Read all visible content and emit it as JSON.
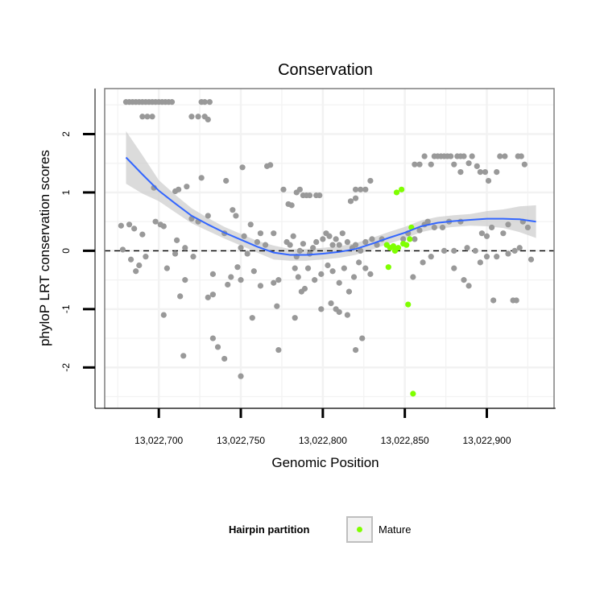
{
  "chart_data": {
    "type": "scatter",
    "title": "Conservation",
    "xlabel": "Genomic Position",
    "ylabel": "phyloP LRT conservation scores",
    "xlim": [
      13022667,
      13022941
    ],
    "ylim": [
      -2.7,
      2.78
    ],
    "x_ticks": [
      13022700,
      13022750,
      13022800,
      13022850,
      13022900
    ],
    "x_tick_labels": [
      "13,022,700",
      "13,022,750",
      "13,022,800",
      "13,022,850",
      "13,022,900"
    ],
    "y_ticks": [
      -2,
      -1,
      0,
      1,
      2
    ],
    "y_tick_labels": [
      "-2",
      "-1",
      "0",
      "1",
      "2"
    ],
    "grid": true,
    "reference_line": {
      "y": 0,
      "style": "dashed"
    },
    "legend": {
      "title": "Hairpin partition",
      "position": "bottom",
      "entries": [
        {
          "label": "Mature",
          "color": "#7fff00"
        }
      ]
    },
    "colors": {
      "points": "#999999",
      "mature": "#7fff00",
      "smooth": "#3366ff",
      "band": "#cfcfcf",
      "panel_grid": "#f2f2f2",
      "panel_border": "#7f7f7f"
    },
    "smooth_fit": {
      "x": [
        13022680,
        13022690,
        13022700,
        13022710,
        13022720,
        13022730,
        13022740,
        13022750,
        13022760,
        13022770,
        13022780,
        13022790,
        13022800,
        13022810,
        13022820,
        13022830,
        13022840,
        13022850,
        13022860,
        13022870,
        13022880,
        13022890,
        13022900,
        13022910,
        13022920,
        13022930
      ],
      "y": [
        1.6,
        1.31,
        1.03,
        0.81,
        0.6,
        0.45,
        0.31,
        0.19,
        0.07,
        -0.03,
        -0.07,
        -0.07,
        -0.05,
        -0.02,
        0.03,
        0.12,
        0.22,
        0.31,
        0.42,
        0.48,
        0.51,
        0.53,
        0.55,
        0.55,
        0.54,
        0.5
      ],
      "lower": [
        1.15,
        0.98,
        0.85,
        0.66,
        0.47,
        0.34,
        0.21,
        0.09,
        -0.03,
        -0.15,
        -0.17,
        -0.17,
        -0.15,
        -0.12,
        -0.07,
        0.02,
        0.12,
        0.21,
        0.32,
        0.38,
        0.41,
        0.43,
        0.42,
        0.39,
        0.32,
        0.22
      ],
      "upper": [
        2.05,
        1.64,
        1.21,
        0.96,
        0.73,
        0.56,
        0.41,
        0.29,
        0.17,
        0.09,
        0.03,
        0.03,
        0.05,
        0.08,
        0.13,
        0.22,
        0.32,
        0.41,
        0.52,
        0.58,
        0.61,
        0.63,
        0.68,
        0.71,
        0.76,
        0.78
      ]
    },
    "series": [
      {
        "points": [
          [
            13022680,
            2.55
          ],
          [
            13022682,
            2.55
          ],
          [
            13022684,
            2.55
          ],
          [
            13022686,
            2.55
          ],
          [
            13022688,
            2.55
          ],
          [
            13022690,
            2.55
          ],
          [
            13022692,
            2.55
          ],
          [
            13022694,
            2.55
          ],
          [
            13022696,
            2.55
          ],
          [
            13022698,
            2.55
          ],
          [
            13022700,
            2.55
          ],
          [
            13022702,
            2.55
          ],
          [
            13022704,
            2.55
          ],
          [
            13022706,
            2.55
          ],
          [
            13022708,
            2.55
          ],
          [
            13022690,
            2.3
          ],
          [
            13022693,
            2.3
          ],
          [
            13022696,
            2.3
          ],
          [
            13022726,
            2.55
          ],
          [
            13022728,
            2.55
          ],
          [
            13022731,
            2.55
          ],
          [
            13022720,
            2.3
          ],
          [
            13022724,
            2.3
          ],
          [
            13022728,
            2.3
          ],
          [
            13022730,
            2.25
          ],
          [
            13022697,
            1.08
          ],
          [
            13022710,
            1.02
          ],
          [
            13022712,
            1.05
          ],
          [
            13022717,
            1.1
          ],
          [
            13022726,
            1.25
          ],
          [
            13022741,
            1.2
          ],
          [
            13022751,
            1.43
          ],
          [
            13022766,
            1.45
          ],
          [
            13022768,
            1.47
          ],
          [
            13022677,
            0.43
          ],
          [
            13022682,
            0.45
          ],
          [
            13022685,
            0.38
          ],
          [
            13022690,
            0.28
          ],
          [
            13022698,
            0.5
          ],
          [
            13022701,
            0.45
          ],
          [
            13022703,
            0.42
          ],
          [
            13022711,
            0.18
          ],
          [
            13022716,
            0.05
          ],
          [
            13022720,
            0.55
          ],
          [
            13022724,
            0.5
          ],
          [
            13022730,
            0.6
          ],
          [
            13022740,
            0.3
          ],
          [
            13022745,
            0.7
          ],
          [
            13022747,
            0.6
          ],
          [
            13022750,
            0.05
          ],
          [
            13022752,
            0.25
          ],
          [
            13022756,
            0.45
          ],
          [
            13022760,
            0.15
          ],
          [
            13022762,
            0.3
          ],
          [
            13022765,
            0.1
          ],
          [
            13022770,
            0.3
          ],
          [
            13022678,
            0.02
          ],
          [
            13022683,
            -0.15
          ],
          [
            13022686,
            -0.35
          ],
          [
            13022688,
            -0.25
          ],
          [
            13022692,
            -0.1
          ],
          [
            13022705,
            -0.3
          ],
          [
            13022710,
            -0.05
          ],
          [
            13022716,
            -0.5
          ],
          [
            13022721,
            -0.1
          ],
          [
            13022733,
            -0.4
          ],
          [
            13022744,
            -0.45
          ],
          [
            13022750,
            -0.5
          ],
          [
            13022754,
            -0.05
          ],
          [
            13022758,
            -0.35
          ],
          [
            13022762,
            -0.6
          ],
          [
            13022770,
            -0.55
          ],
          [
            13022773,
            -0.5
          ],
          [
            13022703,
            -1.1
          ],
          [
            13022713,
            -0.78
          ],
          [
            13022730,
            -0.8
          ],
          [
            13022733,
            -0.75
          ],
          [
            13022742,
            -0.58
          ],
          [
            13022748,
            -0.28
          ],
          [
            13022757,
            -1.15
          ],
          [
            13022772,
            -0.95
          ],
          [
            13022715,
            -1.8
          ],
          [
            13022733,
            -1.5
          ],
          [
            13022736,
            -1.65
          ],
          [
            13022740,
            -1.85
          ],
          [
            13022750,
            -2.15
          ],
          [
            13022773,
            -1.7
          ],
          [
            13022776,
            1.05
          ],
          [
            13022779,
            0.8
          ],
          [
            13022781,
            0.78
          ],
          [
            13022784,
            1.0
          ],
          [
            13022786,
            1.05
          ],
          [
            13022788,
            0.95
          ],
          [
            13022790,
            0.95
          ],
          [
            13022792,
            0.95
          ],
          [
            13022796,
            0.95
          ],
          [
            13022798,
            0.95
          ],
          [
            13022778,
            0.15
          ],
          [
            13022780,
            0.1
          ],
          [
            13022782,
            0.25
          ],
          [
            13022784,
            -0.1
          ],
          [
            13022786,
            0.0
          ],
          [
            13022788,
            0.12
          ],
          [
            13022792,
            -0.05
          ],
          [
            13022794,
            0.05
          ],
          [
            13022796,
            0.15
          ],
          [
            13022800,
            0.2
          ],
          [
            13022802,
            0.3
          ],
          [
            13022804,
            0.25
          ],
          [
            13022806,
            0.1
          ],
          [
            13022808,
            0.2
          ],
          [
            13022810,
            0.1
          ],
          [
            13022812,
            0.3
          ],
          [
            13022815,
            0.15
          ],
          [
            13022818,
            0.05
          ],
          [
            13022820,
            0.1
          ],
          [
            13022823,
            0.0
          ],
          [
            13022826,
            0.15
          ],
          [
            13022830,
            0.2
          ],
          [
            13022833,
            0.1
          ],
          [
            13022836,
            0.2
          ],
          [
            13022783,
            -0.3
          ],
          [
            13022785,
            -0.45
          ],
          [
            13022787,
            -0.7
          ],
          [
            13022789,
            -0.65
          ],
          [
            13022791,
            -0.3
          ],
          [
            13022795,
            -0.5
          ],
          [
            13022799,
            -0.4
          ],
          [
            13022803,
            -0.25
          ],
          [
            13022806,
            -0.35
          ],
          [
            13022810,
            -0.55
          ],
          [
            13022813,
            -0.3
          ],
          [
            13022816,
            -0.7
          ],
          [
            13022819,
            -0.45
          ],
          [
            13022822,
            -0.2
          ],
          [
            13022826,
            -0.3
          ],
          [
            13022829,
            -0.4
          ],
          [
            13022783,
            -1.15
          ],
          [
            13022799,
            -1.0
          ],
          [
            13022805,
            -0.9
          ],
          [
            13022808,
            -1.0
          ],
          [
            13022810,
            -1.05
          ],
          [
            13022815,
            -1.1
          ],
          [
            13022820,
            -1.7
          ],
          [
            13022824,
            -1.5
          ],
          [
            13022817,
            0.85
          ],
          [
            13022820,
            0.9
          ],
          [
            13022820,
            1.05
          ],
          [
            13022823,
            1.05
          ],
          [
            13022826,
            1.05
          ],
          [
            13022829,
            1.2
          ],
          [
            13022849,
            0.2
          ],
          [
            13022852,
            0.3
          ],
          [
            13022856,
            0.2
          ],
          [
            13022855,
            -0.45
          ],
          [
            13022859,
            0.35
          ],
          [
            13022862,
            0.45
          ],
          [
            13022856,
            1.48
          ],
          [
            13022859,
            1.48
          ],
          [
            13022862,
            1.62
          ],
          [
            13022866,
            1.48
          ],
          [
            13022868,
            1.62
          ],
          [
            13022870,
            1.62
          ],
          [
            13022872,
            1.62
          ],
          [
            13022874,
            1.62
          ],
          [
            13022876,
            1.62
          ],
          [
            13022878,
            1.62
          ],
          [
            13022882,
            1.62
          ],
          [
            13022884,
            1.62
          ],
          [
            13022886,
            1.62
          ],
          [
            13022880,
            1.48
          ],
          [
            13022884,
            1.35
          ],
          [
            13022889,
            1.5
          ],
          [
            13022891,
            1.62
          ],
          [
            13022894,
            1.45
          ],
          [
            13022896,
            1.35
          ],
          [
            13022899,
            1.35
          ],
          [
            13022901,
            1.2
          ],
          [
            13022906,
            1.35
          ],
          [
            13022908,
            1.62
          ],
          [
            13022911,
            1.62
          ],
          [
            13022919,
            1.62
          ],
          [
            13022921,
            1.62
          ],
          [
            13022923,
            1.48
          ],
          [
            13022864,
            0.5
          ],
          [
            13022868,
            0.4
          ],
          [
            13022873,
            0.4
          ],
          [
            13022877,
            0.5
          ],
          [
            13022880,
            0.0
          ],
          [
            13022884,
            0.5
          ],
          [
            13022888,
            0.05
          ],
          [
            13022893,
            0.0
          ],
          [
            13022897,
            0.3
          ],
          [
            13022900,
            0.25
          ],
          [
            13022903,
            0.4
          ],
          [
            13022906,
            -0.1
          ],
          [
            13022910,
            0.3
          ],
          [
            13022913,
            0.45
          ],
          [
            13022917,
            0.0
          ],
          [
            13022920,
            0.05
          ],
          [
            13022922,
            0.5
          ],
          [
            13022925,
            0.4
          ],
          [
            13022927,
            -0.15
          ],
          [
            13022861,
            -0.2
          ],
          [
            13022866,
            -0.1
          ],
          [
            13022874,
            0.0
          ],
          [
            13022880,
            -0.3
          ],
          [
            13022886,
            -0.5
          ],
          [
            13022889,
            -0.6
          ],
          [
            13022896,
            -0.2
          ],
          [
            13022900,
            -0.1
          ],
          [
            13022904,
            -0.85
          ],
          [
            13022913,
            -0.05
          ],
          [
            13022916,
            -0.85
          ],
          [
            13022918,
            -0.85
          ]
        ]
      },
      {
        "name": "Mature",
        "points": [
          [
            13022839,
            0.1
          ],
          [
            13022841,
            0.05
          ],
          [
            13022843,
            0.08
          ],
          [
            13022844,
            0.0
          ],
          [
            13022846,
            0.05
          ],
          [
            13022849,
            0.12
          ],
          [
            13022851,
            0.1
          ],
          [
            13022853,
            0.2
          ],
          [
            13022854,
            0.4
          ],
          [
            13022845,
            1.0
          ],
          [
            13022848,
            1.05
          ],
          [
            13022840,
            -0.28
          ],
          [
            13022852,
            -0.92
          ],
          [
            13022855,
            -2.45
          ]
        ]
      }
    ]
  }
}
